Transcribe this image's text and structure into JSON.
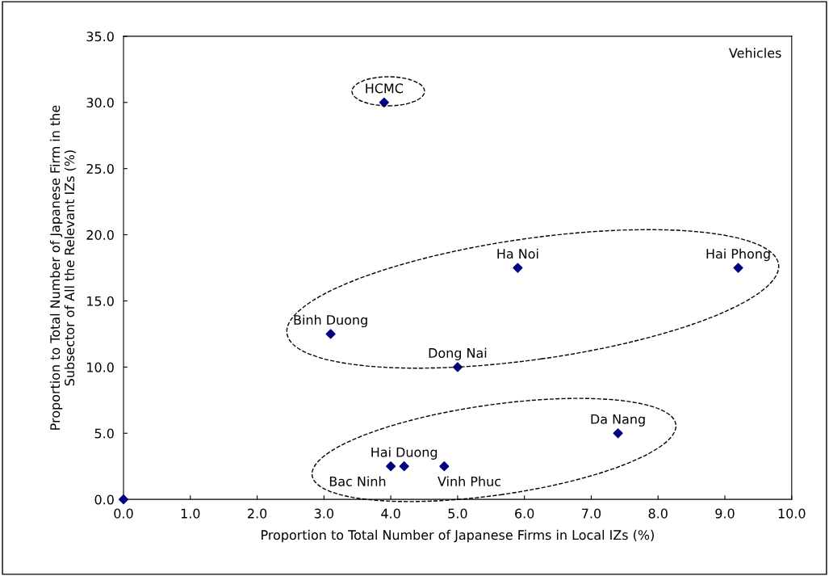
{
  "chart_data": {
    "type": "scatter",
    "xlabel": "Proportion to Total Number of Japanese Firms in Local IZs (%)",
    "ylabel": "Proportion to Total Number of Japanese Firm in the\nSubsector of All the Relevant IZs (%)",
    "x": [
      0.0,
      3.9,
      5.9,
      9.2,
      3.1,
      5.0,
      7.4,
      4.0,
      4.2,
      4.8
    ],
    "series": [
      {
        "color": "#000080",
        "values": [
          0.0,
          30.0,
          17.5,
          17.5,
          12.5,
          10.0,
          5.0,
          2.5,
          2.5,
          2.5
        ]
      }
    ],
    "marker": "diamond",
    "xlim": [
      0,
      10
    ],
    "xticks": [
      {
        "value": 0,
        "label": "0.0"
      },
      {
        "value": 1,
        "label": "1.0"
      },
      {
        "value": 2,
        "label": "2.0"
      },
      {
        "value": 3,
        "label": "3.0"
      },
      {
        "value": 4,
        "label": "4.0"
      },
      {
        "value": 5,
        "label": "5.0"
      },
      {
        "value": 6,
        "label": "6.0"
      },
      {
        "value": 7,
        "label": "7.0"
      },
      {
        "value": 8,
        "label": "8.0"
      },
      {
        "value": 9,
        "label": "9.0"
      },
      {
        "value": 10,
        "label": "10.0"
      }
    ],
    "ylim": [
      0,
      35
    ],
    "yticks": [
      {
        "value": 0,
        "label": "0.0"
      },
      {
        "value": 5,
        "label": "5.0"
      },
      {
        "value": 10,
        "label": "10.0"
      },
      {
        "value": 15,
        "label": "15.0"
      },
      {
        "value": 20,
        "label": "20.0"
      },
      {
        "value": 25,
        "label": "25.0"
      },
      {
        "value": 30,
        "label": "30.0"
      },
      {
        "value": 35,
        "label": "35.0"
      }
    ],
    "grid": false,
    "annotations": [
      "Vehicles",
      {
        "text": "HCMC",
        "x": 3.9,
        "y": 30.0
      },
      {
        "text": "Ha Noi",
        "x": 5.9,
        "y": 17.5
      },
      {
        "text": "Hai Phong",
        "x": 9.2,
        "y": 17.5
      },
      {
        "text": "Binh Duong",
        "x": 3.1,
        "y": 12.5
      },
      {
        "text": "Dong Nai",
        "x": 5.0,
        "y": 10.0
      },
      {
        "text": "Da Nang",
        "x": 7.4,
        "y": 5.0
      },
      {
        "text": "Bac Ninh",
        "x": 4.0,
        "y": 2.5
      },
      {
        "text": "Hai Duong",
        "x": 4.2,
        "y": 2.5
      },
      {
        "text": "Vinh Phuc",
        "x": 4.8,
        "y": 2.5
      }
    ]
  }
}
